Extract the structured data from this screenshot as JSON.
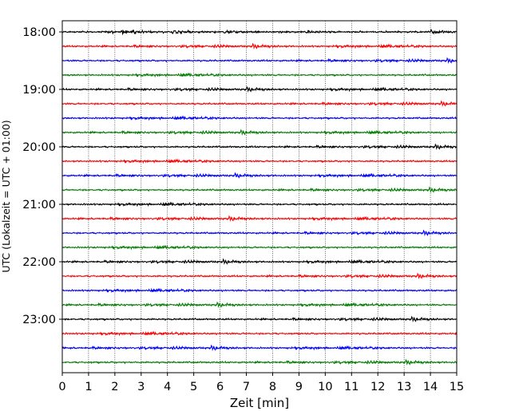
{
  "chart_data": {
    "type": "line",
    "title": "",
    "xlabel": "Zeit  [min]",
    "ylabel": "UTC (Lokalzeit = UTC + 01:00)",
    "xlim": [
      0,
      15
    ],
    "x_ticks": [
      "0",
      "1",
      "2",
      "3",
      "4",
      "5",
      "6",
      "7",
      "8",
      "9",
      "10",
      "11",
      "12",
      "13",
      "14",
      "15"
    ],
    "y_tick_labels": [
      "18:00",
      "19:00",
      "20:00",
      "21:00",
      "22:00",
      "23:00"
    ],
    "grid": "vertical dotted lines at each minute",
    "trace_interval_minutes": 15,
    "trace_start_times_utc": [
      "18:00",
      "18:15",
      "18:30",
      "18:45",
      "19:00",
      "19:15",
      "19:30",
      "19:45",
      "20:00",
      "20:15",
      "20:30",
      "20:45",
      "21:00",
      "21:15",
      "21:30",
      "21:45",
      "22:00",
      "22:15",
      "22:30",
      "22:45",
      "23:00",
      "23:15",
      "23:30",
      "23:45"
    ],
    "series_colors_cycle": [
      "#000000",
      "#ff0000",
      "#0000ff",
      "#007f00"
    ],
    "signal": "seismogram-like noise centered on each trace baseline (approximate)"
  }
}
